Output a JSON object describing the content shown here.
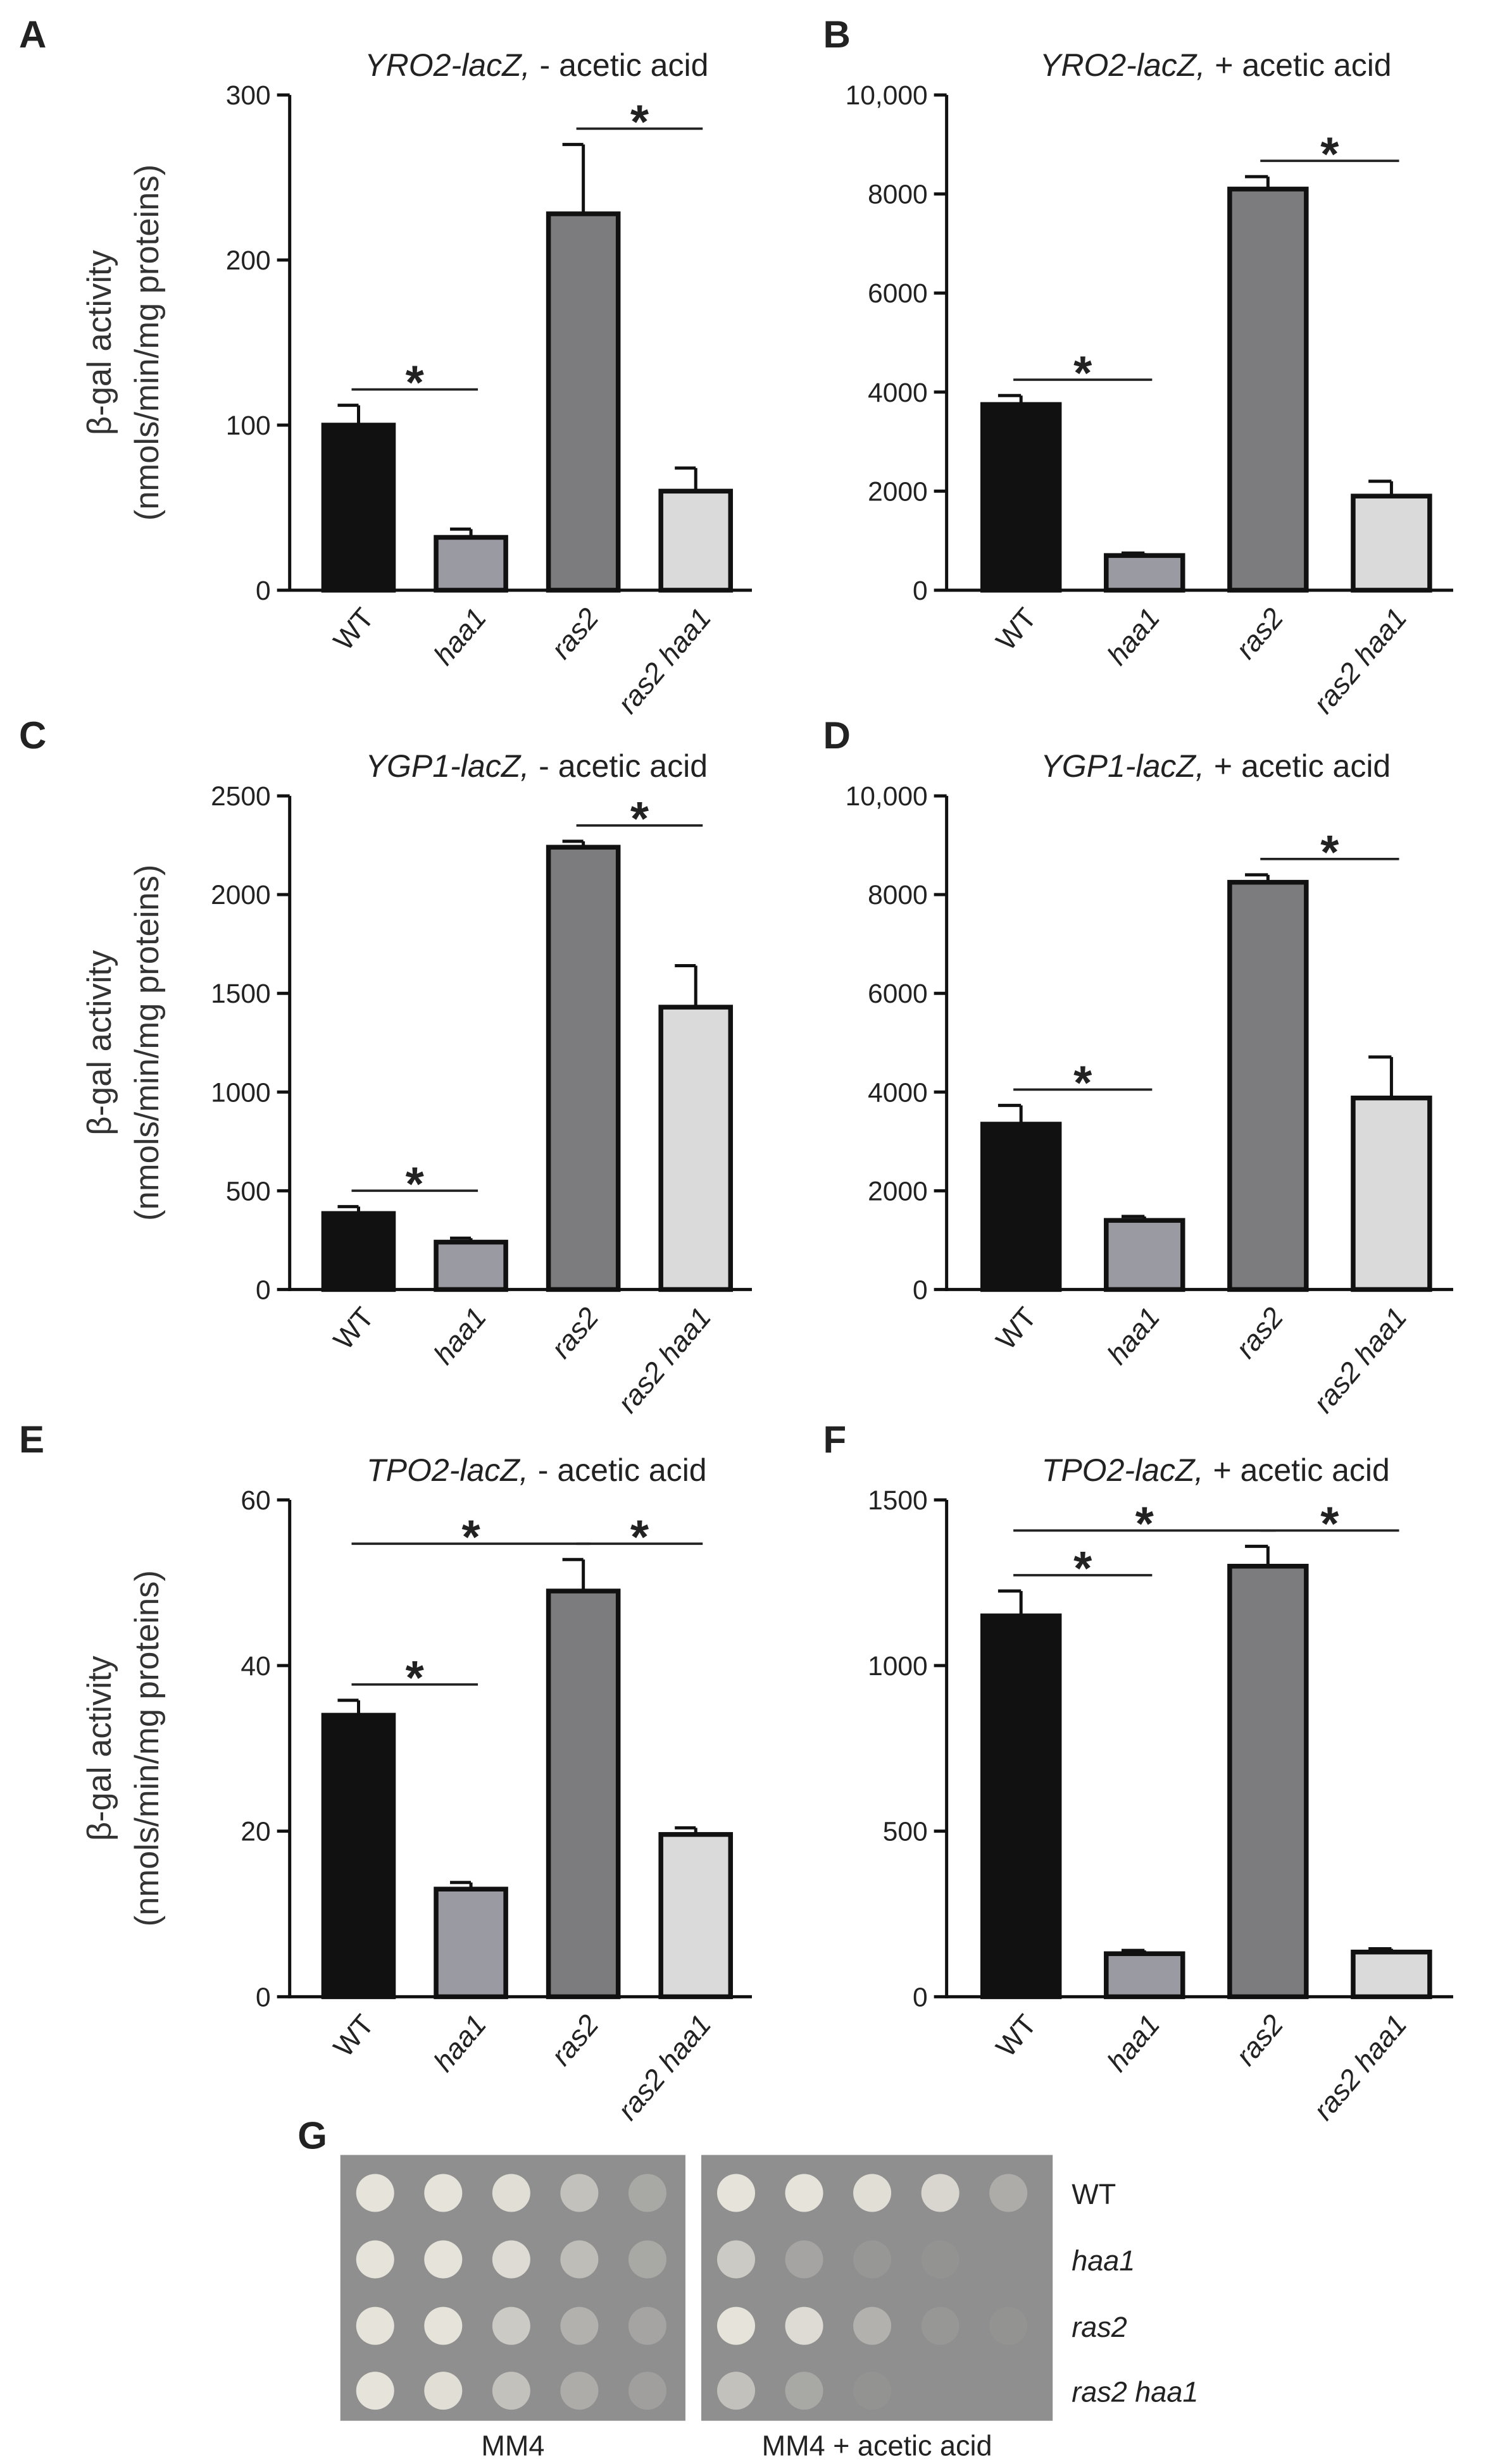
{
  "chart_data": [
    {
      "type": "bar",
      "label": "A",
      "title_gene": "YRO2-lacZ,",
      "title_condition": "- acetic acid",
      "ylabel": [
        "β-gal activity",
        "(nmols/min/mg proteins)"
      ],
      "categories": [
        "WT",
        "haa1",
        "ras2",
        "ras2 haa1"
      ],
      "values": [
        100,
        32,
        228,
        60
      ],
      "errors": [
        12,
        5,
        42,
        14
      ],
      "colors": [
        "#111111",
        "#9a9aa2",
        "#7c7c7e",
        "#d9dad9"
      ],
      "ylim": [
        0,
        300
      ],
      "yticks": [
        0,
        100,
        200,
        300
      ],
      "annotations": [
        {
          "text": "*",
          "from": 0,
          "to": 1
        },
        {
          "text": "*",
          "from": 2,
          "to": 3
        }
      ]
    },
    {
      "type": "bar",
      "label": "B",
      "title_gene": "YRO2-lacZ,",
      "title_condition": "+ acetic acid",
      "categories": [
        "WT",
        "haa1",
        "ras2",
        "ras2 haa1"
      ],
      "values": [
        3750,
        700,
        8100,
        1900
      ],
      "errors": [
        180,
        50,
        250,
        300
      ],
      "colors": [
        "#111111",
        "#9a9aa2",
        "#7c7c7e",
        "#d9dad9"
      ],
      "ylim": [
        0,
        10000
      ],
      "yticks": [
        0,
        2000,
        4000,
        6000,
        8000,
        {
          "value": 10000,
          "label": "10,000"
        }
      ],
      "annotations": [
        {
          "text": "*",
          "from": 0,
          "to": 1
        },
        {
          "text": "*",
          "from": 2,
          "to": 3
        }
      ]
    },
    {
      "type": "bar",
      "label": "C",
      "title_gene": "YGP1-lacZ,",
      "title_condition": "- acetic acid",
      "ylabel": [
        "β-gal activity",
        "(nmols/min/mg proteins)"
      ],
      "categories": [
        "WT",
        "haa1",
        "ras2",
        "ras2 haa1"
      ],
      "values": [
        385,
        240,
        2240,
        1430
      ],
      "errors": [
        35,
        20,
        30,
        210
      ],
      "colors": [
        "#111111",
        "#9a9aa2",
        "#7c7c7e",
        "#d9dad9"
      ],
      "ylim": [
        0,
        2500
      ],
      "yticks": [
        0,
        500,
        1000,
        1500,
        2000,
        2500
      ],
      "annotations": [
        {
          "text": "*",
          "from": 0,
          "to": 1
        },
        {
          "text": "*",
          "from": 2,
          "to": 3
        }
      ]
    },
    {
      "type": "bar",
      "label": "D",
      "title_gene": "YGP1-lacZ,",
      "title_condition": "+ acetic acid",
      "categories": [
        "WT",
        "haa1",
        "ras2",
        "ras2 haa1"
      ],
      "values": [
        3350,
        1400,
        8250,
        3880
      ],
      "errors": [
        380,
        80,
        150,
        830
      ],
      "colors": [
        "#111111",
        "#9a9aa2",
        "#7c7c7e",
        "#d9dad9"
      ],
      "ylim": [
        0,
        10000
      ],
      "yticks": [
        0,
        2000,
        4000,
        6000,
        8000,
        {
          "value": 10000,
          "label": "10,000"
        }
      ],
      "annotations": [
        {
          "text": "*",
          "from": 0,
          "to": 1
        },
        {
          "text": "*",
          "from": 2,
          "to": 3
        }
      ]
    },
    {
      "type": "bar",
      "label": "E",
      "title_gene": "TPO2-lacZ,",
      "title_condition": "- acetic acid",
      "ylabel": [
        "β-gal activity",
        "(nmols/min/mg proteins)"
      ],
      "categories": [
        "WT",
        "haa1",
        "ras2",
        "ras2 haa1"
      ],
      "values": [
        34,
        13,
        49,
        19.6
      ],
      "errors": [
        1.8,
        0.8,
        3.8,
        0.8
      ],
      "colors": [
        "#111111",
        "#9a9aa2",
        "#7c7c7e",
        "#d9dad9"
      ],
      "ylim": [
        0,
        60
      ],
      "yticks": [
        0,
        20,
        40,
        60
      ],
      "annotations": [
        {
          "text": "*",
          "from": 0,
          "to": 1
        },
        {
          "text": "*",
          "from": 0,
          "to": 2
        },
        {
          "text": "*",
          "from": 2,
          "to": 3
        }
      ]
    },
    {
      "type": "bar",
      "label": "F",
      "title_gene": "TPO2-lacZ,",
      "title_condition": "+ acetic acid",
      "categories": [
        "WT",
        "haa1",
        "ras2",
        "ras2 haa1"
      ],
      "values": [
        1150,
        130,
        1300,
        135
      ],
      "errors": [
        75,
        10,
        60,
        10
      ],
      "colors": [
        "#111111",
        "#9a9aa2",
        "#7c7c7e",
        "#d9dad9"
      ],
      "ylim": [
        0,
        1500
      ],
      "yticks": [
        0,
        500,
        1000,
        1500
      ],
      "annotations": [
        {
          "text": "*",
          "from": 0,
          "to": 1
        },
        {
          "text": "*",
          "from": 0,
          "to": 2
        },
        {
          "text": "*",
          "from": 2,
          "to": 3
        }
      ]
    }
  ],
  "spot_assay": {
    "label": "G",
    "strains": [
      "WT",
      "haa1",
      "ras2",
      "ras2 haa1"
    ],
    "plates": [
      "MM4",
      "MM4 + acetic acid"
    ]
  }
}
